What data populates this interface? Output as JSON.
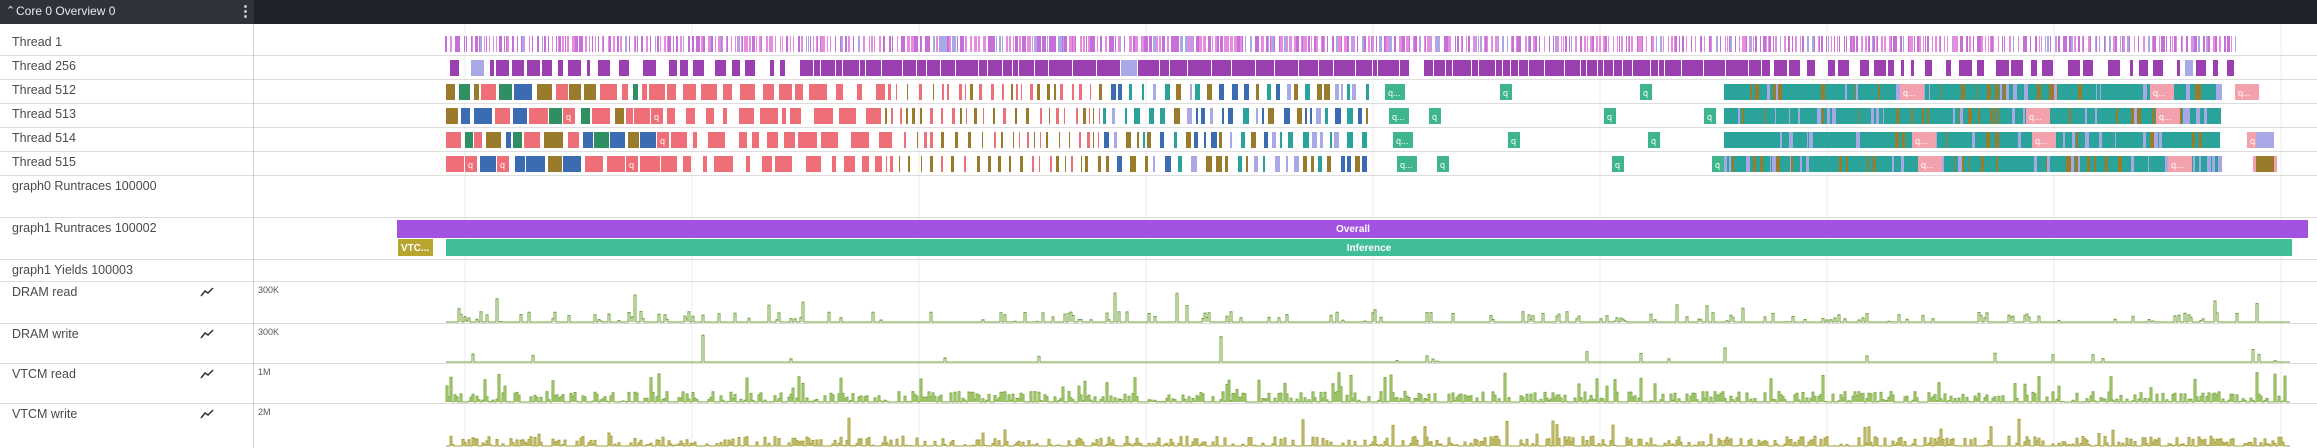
{
  "header": {
    "collapse_icon": "chevron-up-icon",
    "title": "Core 0 Overview 0",
    "menu_icon": "kebab-menu-icon",
    "background": "#2f323a"
  },
  "threads": [
    {
      "label": "Thread 1"
    },
    {
      "label": "Thread 256"
    },
    {
      "label": "Thread 512"
    },
    {
      "label": "Thread 513"
    },
    {
      "label": "Thread 514"
    },
    {
      "label": "Thread 515"
    }
  ],
  "slice_label_q": "q",
  "slice_label_q_trunc": "q...",
  "runtraces": [
    {
      "label": "graph0 Runtraces 100000"
    },
    {
      "label": "graph1 Runtraces 100002",
      "slices": [
        {
          "label": "Overall",
          "color": "#a252e0"
        },
        {
          "label": "VTC...",
          "color": "#b7a52f"
        },
        {
          "label": "Inference",
          "color": "#40be97"
        }
      ]
    },
    {
      "label": "graph1 Yields 100003"
    }
  ],
  "counters": [
    {
      "label": "DRAM read",
      "scale": "300K",
      "icon": "chart-line-icon"
    },
    {
      "label": "DRAM write",
      "scale": "300K",
      "icon": "chart-line-icon"
    },
    {
      "label": "VTCM read",
      "scale": "1M",
      "icon": "chart-line-icon"
    },
    {
      "label": "VTCM write",
      "scale": "2M",
      "icon": "chart-line-icon"
    }
  ],
  "colors": {
    "thread1_pink": "#e88ce0",
    "thread256_purple": "#9c3fb0",
    "blue": "#3b6bb0",
    "green": "#2f8f63",
    "salmon": "#ef6f78",
    "olive": "#9a7b2b",
    "lavender": "#a9a8e6",
    "teal": "#2aa39a",
    "mint": "#3fb58e",
    "pink_light": "#f3a1ad",
    "dram_line": "#6fa03a",
    "vtcm_read_fill": "#b9d98c",
    "vtcm_write_fill": "#d2ce8a"
  }
}
